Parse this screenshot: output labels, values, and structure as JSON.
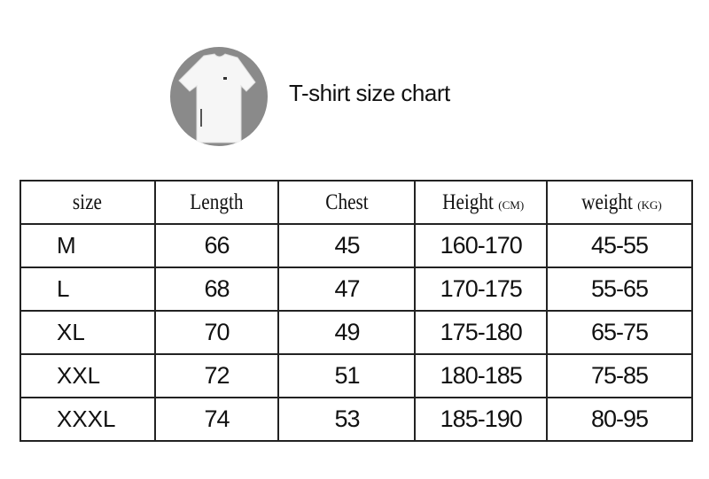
{
  "title": "T-shirt size chart",
  "product_image": {
    "description_icon": "white-tshirt-photo"
  },
  "table": {
    "headers": [
      {
        "label": "size",
        "unit": ""
      },
      {
        "label": "Length",
        "unit": ""
      },
      {
        "label": "Chest",
        "unit": ""
      },
      {
        "label": "Height",
        "unit": "(CM)"
      },
      {
        "label": "weight",
        "unit": "(KG)"
      }
    ],
    "rows": [
      [
        "M",
        "66",
        "45",
        "160-170",
        "45-55"
      ],
      [
        "L",
        "68",
        "47",
        "170-175",
        "55-65"
      ],
      [
        "XL",
        "70",
        "49",
        "175-180",
        "65-75"
      ],
      [
        "XXL",
        "72",
        "51",
        "180-185",
        "75-85"
      ],
      [
        "XXXL",
        "74",
        "53",
        "185-190",
        "80-95"
      ]
    ]
  }
}
